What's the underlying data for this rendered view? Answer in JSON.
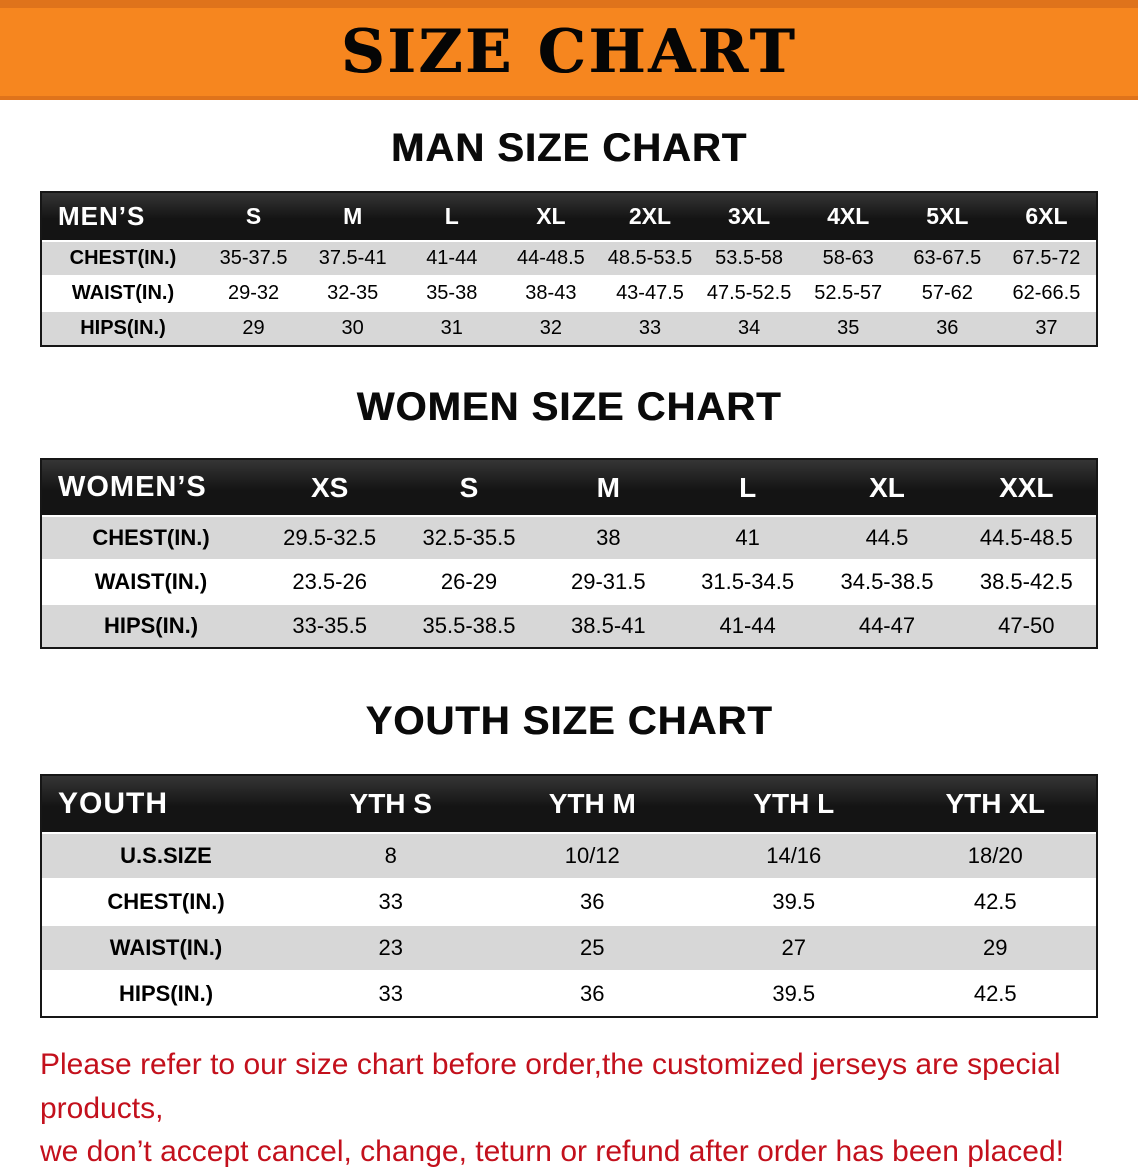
{
  "banner": {
    "title": "SIZE CHART"
  },
  "chart_data": [
    {
      "type": "table",
      "title": "MAN SIZE CHART",
      "columns": [
        "MEN’S",
        "S",
        "M",
        "L",
        "XL",
        "2XL",
        "3XL",
        "4XL",
        "5XL",
        "6XL"
      ],
      "rows": [
        [
          "CHEST(IN.)",
          "35-37.5",
          "37.5-41",
          "41-44",
          "44-48.5",
          "48.5-53.5",
          "53.5-58",
          "58-63",
          "63-67.5",
          "67.5-72"
        ],
        [
          "WAIST(IN.)",
          "29-32",
          "32-35",
          "35-38",
          "38-43",
          "43-47.5",
          "47.5-52.5",
          "52.5-57",
          "57-62",
          "62-66.5"
        ],
        [
          "HIPS(IN.)",
          "29",
          "30",
          "31",
          "32",
          "33",
          "34",
          "35",
          "36",
          "37"
        ]
      ]
    },
    {
      "type": "table",
      "title": "WOMEN SIZE CHART",
      "columns": [
        "WOMEN’S",
        "XS",
        "S",
        "M",
        "L",
        "XL",
        "XXL"
      ],
      "rows": [
        [
          "CHEST(IN.)",
          "29.5-32.5",
          "32.5-35.5",
          "38",
          "41",
          "44.5",
          "44.5-48.5"
        ],
        [
          "WAIST(IN.)",
          "23.5-26",
          "26-29",
          "29-31.5",
          "31.5-34.5",
          "34.5-38.5",
          "38.5-42.5"
        ],
        [
          "HIPS(IN.)",
          "33-35.5",
          "35.5-38.5",
          "38.5-41",
          "41-44",
          "44-47",
          "47-50"
        ]
      ]
    },
    {
      "type": "table",
      "title": "YOUTH SIZE CHART",
      "columns": [
        "YOUTH",
        "YTH S",
        "YTH M",
        "YTH L",
        "YTH XL"
      ],
      "rows": [
        [
          "U.S.SIZE",
          "8",
          "10/12",
          "14/16",
          "18/20"
        ],
        [
          "CHEST(IN.)",
          "33",
          "36",
          "39.5",
          "42.5"
        ],
        [
          "WAIST(IN.)",
          "23",
          "25",
          "27",
          "29"
        ],
        [
          "HIPS(IN.)",
          "33",
          "36",
          "39.5",
          "42.5"
        ]
      ]
    }
  ],
  "note": {
    "line1": "Please refer to our size chart before order,the customized jerseys are special products,",
    "line2": "we don’t accept cancel, change, teturn or refund after order has been placed!"
  },
  "colors": {
    "banner_bg": "#F6861F",
    "banner_edge": "#DF731B",
    "table_header_bg": "#141414",
    "table_header_text": "#FFFFFF",
    "table_border": "#161616",
    "row_shade": "#D7D7D7",
    "note_red": "#C3101C"
  }
}
